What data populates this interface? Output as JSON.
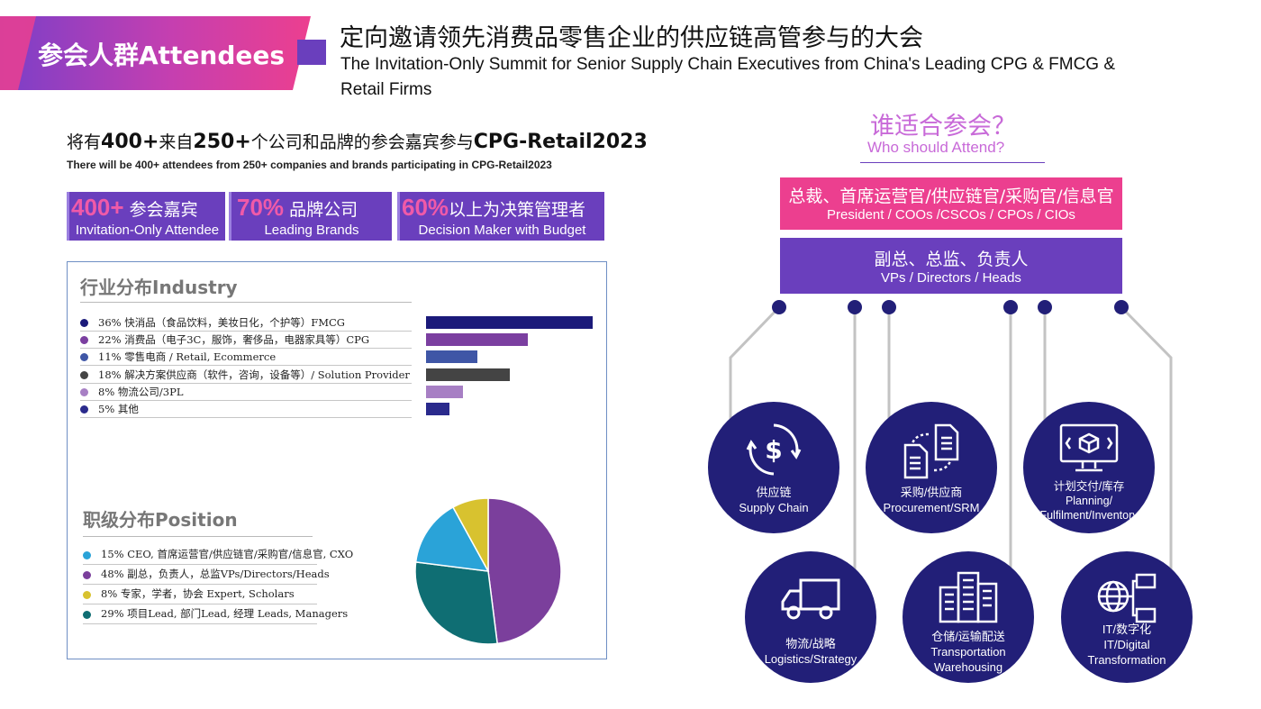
{
  "header": {
    "badge": "参会人群Attendees",
    "title_cn": "定向邀请领先消费品零售企业的供应链高管参与的大会",
    "title_en": "The Invitation-Only Summit for Senior Supply Chain Executives from China's Leading CPG & FMCG & Retail Firms"
  },
  "intro": {
    "cn_p1": "将有",
    "cn_n1": "400+",
    "cn_p2": "来自",
    "cn_n2": "250+",
    "cn_p3": "个公司和品牌的参会嘉宾参与",
    "cn_brand": "CPG-Retail2023",
    "en": "There will be 400+ attendees from 250+ companies and brands participating in CPG-Retail2023"
  },
  "stats": [
    {
      "num": "400+",
      "cn": " 参会嘉宾",
      "en": "Invitation-Only Attendee"
    },
    {
      "num": "70%",
      "cn": " 品牌公司",
      "en": "Leading Brands"
    },
    {
      "num": "60%",
      "cn": "以上为决策管理者",
      "en": "Decision Maker with Budget"
    }
  ],
  "industry": {
    "title": "行业分布Industry",
    "items": [
      {
        "label": "36%  快消品（食品饮料，美妆日化，个护等）FMCG",
        "value": 36,
        "color": "#1b1a7a"
      },
      {
        "label": "22%  消费品（电子3C，服饰，奢侈品，电器家具等）CPG",
        "value": 22,
        "color": "#7b3fa0"
      },
      {
        "label": "11%  零售电商 / Retail, Ecommerce",
        "value": 11,
        "color": "#3f56a6"
      },
      {
        "label": "18%  解决方案供应商（软件，咨询，设备等）/ Solution Provider",
        "value": 18,
        "color": "#444444"
      },
      {
        "label": " 8%   物流公司/3PL",
        "value": 8,
        "color": "#a77fc4"
      },
      {
        "label": " 5%   其他",
        "value": 5,
        "color": "#2a2a8c"
      }
    ]
  },
  "position": {
    "title": "职级分布Position",
    "items": [
      {
        "label": "15%  CEO, 首席运营官/供应链官/采购官/信息官, CXO",
        "value": 15,
        "color": "#2aa3d8"
      },
      {
        "label": "48%  副总，负责人，总监VPs/Directors/Heads",
        "value": 48,
        "color": "#7b3f9c"
      },
      {
        "label": " 8%  专家，学者，协会 Expert, Scholars",
        "value": 8,
        "color": "#d8c22f"
      },
      {
        "label": "29%  项目Lead, 部门Lead, 经理 Leads, Managers",
        "value": 29,
        "color": "#0f6e73"
      }
    ]
  },
  "chart_data": [
    {
      "type": "bar",
      "categories": [
        "FMCG",
        "CPG",
        "Retail, Ecommerce",
        "Solution Provider",
        "3PL",
        "其他"
      ],
      "values": [
        36,
        22,
        11,
        18,
        8,
        5
      ]
    },
    {
      "type": "pie",
      "categories": [
        "CXO",
        "VPs/Directors/Heads",
        "Expert, Scholars",
        "Leads, Managers"
      ],
      "values": [
        15,
        48,
        8,
        29
      ]
    }
  ],
  "who": {
    "title_cn": "谁适合参会？",
    "title_en": "Who should Attend?",
    "tier1_cn": "总裁、首席运营官/供应链官/采购官/信息官",
    "tier1_en": "President / COOs /CSCOs / CPOs  / CIOs",
    "tier2_cn": "副总、总监、负责人",
    "tier2_en": "VPs / Directors / Heads"
  },
  "functions": [
    {
      "line1": "供应链",
      "line2": "Supply Chain",
      "line3": "",
      "icon": "dollar-cycle-icon"
    },
    {
      "line1": "采购/供应商",
      "line2": "Procurement/SRM",
      "line3": "",
      "icon": "documents-icon"
    },
    {
      "line1": "计划交付/库存",
      "line2": "Planning/",
      "line3": "Fulfilment/Inventory",
      "icon": "monitor-box-icon"
    },
    {
      "line1": "物流/战略",
      "line2": "Logistics/Strategy",
      "line3": "",
      "icon": "truck-icon"
    },
    {
      "line1": "仓储/运输配送",
      "line2": "Transportation",
      "line3": "Warehousing",
      "icon": "buildings-icon"
    },
    {
      "line1": "IT/数字化",
      "line2": "IT/Digital",
      "line3": "Transformation",
      "icon": "globe-network-icon"
    }
  ],
  "colors": {
    "pink": "#ec3f8f",
    "purple": "#6a3fbd",
    "navy": "#221f78"
  }
}
